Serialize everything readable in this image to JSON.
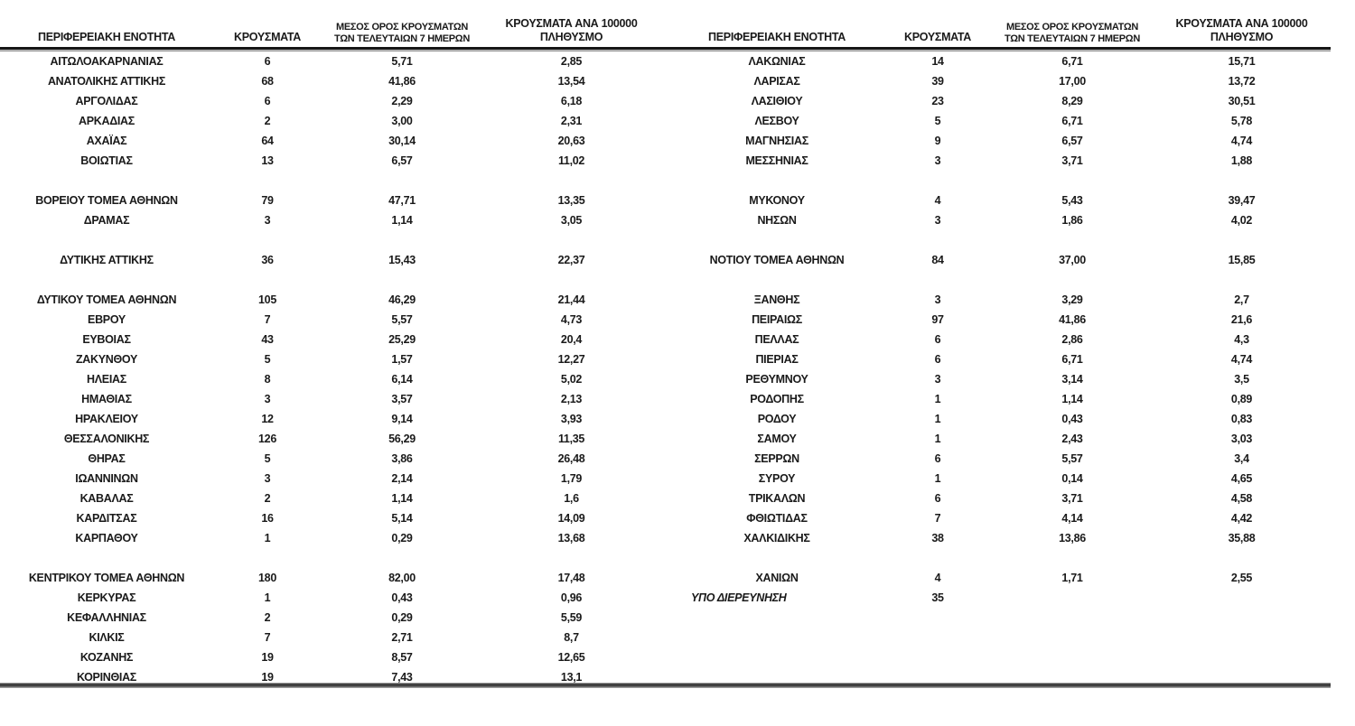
{
  "styles": {
    "background": "#ffffff",
    "text_color": "#1a1a1a",
    "rule_dark": "#161616",
    "rule_gray": "#8f8f8f",
    "rule_bottom_dark": "#414141"
  },
  "columns": {
    "region": "ΠΕΡΙΦΕΡΕΙΑΚΗ ΕΝΟΤΗΤΑ",
    "cases": "ΚΡΟΥΣΜΑΤΑ",
    "avg7_line1": "ΜΕΣΟΣ ΟΡΟΣ ΚΡΟΥΣΜΑΤΩΝ",
    "avg7_line2": "ΤΩΝ ΤΕΛΕΥΤΑΙΩΝ 7 ΗΜΕΡΩΝ",
    "per100k_line1": "ΚΡΟΥΣΜΑΤΑ ΑΝΑ 100000",
    "per100k_line2": "ΠΛΗΘΥΣΜΟ"
  },
  "left_table": {
    "rows": [
      {
        "region": "ΑΙΤΩΛΟΑΚΑΡΝΑΝΙΑΣ",
        "cases": "6",
        "avg7": "5,71",
        "per100k": "2,85"
      },
      {
        "region": "ΑΝΑΤΟΛΙΚΗΣ ΑΤΤΙΚΗΣ",
        "cases": "68",
        "avg7": "41,86",
        "per100k": "13,54"
      },
      {
        "region": "ΑΡΓΟΛΙΔΑΣ",
        "cases": "6",
        "avg7": "2,29",
        "per100k": "6,18"
      },
      {
        "region": "ΑΡΚΑΔΙΑΣ",
        "cases": "2",
        "avg7": "3,00",
        "per100k": "2,31"
      },
      {
        "region": "ΑΧΑΪΑΣ",
        "cases": "64",
        "avg7": "30,14",
        "per100k": "20,63"
      },
      {
        "region": "ΒΟΙΩΤΙΑΣ",
        "cases": "13",
        "avg7": "6,57",
        "per100k": "11,02"
      },
      {
        "blank": true
      },
      {
        "region": "ΒΟΡΕΙΟΥ ΤΟΜΕΑ ΑΘΗΝΩΝ",
        "cases": "79",
        "avg7": "47,71",
        "per100k": "13,35"
      },
      {
        "region": "ΔΡΑΜΑΣ",
        "cases": "3",
        "avg7": "1,14",
        "per100k": "3,05"
      },
      {
        "blank": true
      },
      {
        "region": "ΔΥΤΙΚΗΣ ΑΤΤΙΚΗΣ",
        "cases": "36",
        "avg7": "15,43",
        "per100k": "22,37"
      },
      {
        "blank": true
      },
      {
        "region": "ΔΥΤΙΚΟΥ ΤΟΜΕΑ ΑΘΗΝΩΝ",
        "cases": "105",
        "avg7": "46,29",
        "per100k": "21,44"
      },
      {
        "region": "ΕΒΡΟΥ",
        "cases": "7",
        "avg7": "5,57",
        "per100k": "4,73"
      },
      {
        "region": "ΕΥΒΟΙΑΣ",
        "cases": "43",
        "avg7": "25,29",
        "per100k": "20,4"
      },
      {
        "region": "ΖΑΚΥΝΘΟΥ",
        "cases": "5",
        "avg7": "1,57",
        "per100k": "12,27"
      },
      {
        "region": "ΗΛΕΙΑΣ",
        "cases": "8",
        "avg7": "6,14",
        "per100k": "5,02"
      },
      {
        "region": "ΗΜΑΘΙΑΣ",
        "cases": "3",
        "avg7": "3,57",
        "per100k": "2,13"
      },
      {
        "region": "ΗΡΑΚΛΕΙΟΥ",
        "cases": "12",
        "avg7": "9,14",
        "per100k": "3,93"
      },
      {
        "region": "ΘΕΣΣΑΛΟΝΙΚΗΣ",
        "cases": "126",
        "avg7": "56,29",
        "per100k": "11,35"
      },
      {
        "region": "ΘΗΡΑΣ",
        "cases": "5",
        "avg7": "3,86",
        "per100k": "26,48"
      },
      {
        "region": "ΙΩΑΝΝΙΝΩΝ",
        "cases": "3",
        "avg7": "2,14",
        "per100k": "1,79"
      },
      {
        "region": "ΚΑΒΑΛΑΣ",
        "cases": "2",
        "avg7": "1,14",
        "per100k": "1,6"
      },
      {
        "region": "ΚΑΡΔΙΤΣΑΣ",
        "cases": "16",
        "avg7": "5,14",
        "per100k": "14,09"
      },
      {
        "region": "ΚΑΡΠΑΘΟΥ",
        "cases": "1",
        "avg7": "0,29",
        "per100k": "13,68"
      },
      {
        "blank": true
      },
      {
        "region": "ΚΕΝΤΡΙΚΟΥ ΤΟΜΕΑ ΑΘΗΝΩΝ",
        "cases": "180",
        "avg7": "82,00",
        "per100k": "17,48"
      },
      {
        "region": "ΚΕΡΚΥΡΑΣ",
        "cases": "1",
        "avg7": "0,43",
        "per100k": "0,96"
      },
      {
        "region": "ΚΕΦΑΛΛΗΝΙΑΣ",
        "cases": "2",
        "avg7": "0,29",
        "per100k": "5,59"
      },
      {
        "region": "ΚΙΛΚΙΣ",
        "cases": "7",
        "avg7": "2,71",
        "per100k": "8,7"
      },
      {
        "region": "ΚΟΖΑΝΗΣ",
        "cases": "19",
        "avg7": "8,57",
        "per100k": "12,65"
      },
      {
        "region": "ΚΟΡΙΝΘΙΑΣ",
        "cases": "19",
        "avg7": "7,43",
        "per100k": "13,1"
      }
    ]
  },
  "right_table": {
    "rows": [
      {
        "region": "ΛΑΚΩΝΙΑΣ",
        "cases": "14",
        "avg7": "6,71",
        "per100k": "15,71"
      },
      {
        "region": "ΛΑΡΙΣΑΣ",
        "cases": "39",
        "avg7": "17,00",
        "per100k": "13,72"
      },
      {
        "region": "ΛΑΣΙΘΙΟΥ",
        "cases": "23",
        "avg7": "8,29",
        "per100k": "30,51"
      },
      {
        "region": "ΛΕΣΒΟΥ",
        "cases": "5",
        "avg7": "6,71",
        "per100k": "5,78"
      },
      {
        "region": "ΜΑΓΝΗΣΙΑΣ",
        "cases": "9",
        "avg7": "6,57",
        "per100k": "4,74"
      },
      {
        "region": "ΜΕΣΣΗΝΙΑΣ",
        "cases": "3",
        "avg7": "3,71",
        "per100k": "1,88"
      },
      {
        "blank": true
      },
      {
        "region": "ΜΥΚΟΝΟΥ",
        "cases": "4",
        "avg7": "5,43",
        "per100k": "39,47"
      },
      {
        "region": "ΝΗΣΩΝ",
        "cases": "3",
        "avg7": "1,86",
        "per100k": "4,02"
      },
      {
        "blank": true
      },
      {
        "region": "ΝΟΤΙΟΥ ΤΟΜΕΑ ΑΘΗΝΩΝ",
        "cases": "84",
        "avg7": "37,00",
        "per100k": "15,85"
      },
      {
        "blank": true
      },
      {
        "region": "ΞΑΝΘΗΣ",
        "cases": "3",
        "avg7": "3,29",
        "per100k": "2,7"
      },
      {
        "region": "ΠΕΙΡΑΙΩΣ",
        "cases": "97",
        "avg7": "41,86",
        "per100k": "21,6"
      },
      {
        "region": "ΠΕΛΛΑΣ",
        "cases": "6",
        "avg7": "2,86",
        "per100k": "4,3"
      },
      {
        "region": "ΠΙΕΡΙΑΣ",
        "cases": "6",
        "avg7": "6,71",
        "per100k": "4,74"
      },
      {
        "region": "ΡΕΘΥΜΝΟΥ",
        "cases": "3",
        "avg7": "3,14",
        "per100k": "3,5"
      },
      {
        "region": "ΡΟΔΟΠΗΣ",
        "cases": "1",
        "avg7": "1,14",
        "per100k": "0,89"
      },
      {
        "region": "ΡΟΔΟΥ",
        "cases": "1",
        "avg7": "0,43",
        "per100k": "0,83"
      },
      {
        "region": "ΣΑΜΟΥ",
        "cases": "1",
        "avg7": "2,43",
        "per100k": "3,03"
      },
      {
        "region": "ΣΕΡΡΩΝ",
        "cases": "6",
        "avg7": "5,57",
        "per100k": "3,4"
      },
      {
        "region": "ΣΥΡΟΥ",
        "cases": "1",
        "avg7": "0,14",
        "per100k": "4,65"
      },
      {
        "region": "ΤΡΙΚΑΛΩΝ",
        "cases": "6",
        "avg7": "3,71",
        "per100k": "4,58"
      },
      {
        "region": "ΦΘΙΩΤΙΔΑΣ",
        "cases": "7",
        "avg7": "4,14",
        "per100k": "4,42"
      },
      {
        "region": "ΧΑΛΚΙΔΙΚΗΣ",
        "cases": "38",
        "avg7": "13,86",
        "per100k": "35,88"
      },
      {
        "blank": true
      },
      {
        "region": "ΧΑΝΙΩΝ",
        "cases": "4",
        "avg7": "1,71",
        "per100k": "2,55"
      },
      {
        "region": "ΥΠΟ ΔΙΕΡΕΥΝΗΣΗ",
        "cases": "35",
        "avg7": "",
        "per100k": "",
        "italic": true,
        "align": "left"
      },
      {
        "blank": true
      },
      {
        "blank": true
      },
      {
        "blank": true
      },
      {
        "blank": true
      }
    ]
  }
}
